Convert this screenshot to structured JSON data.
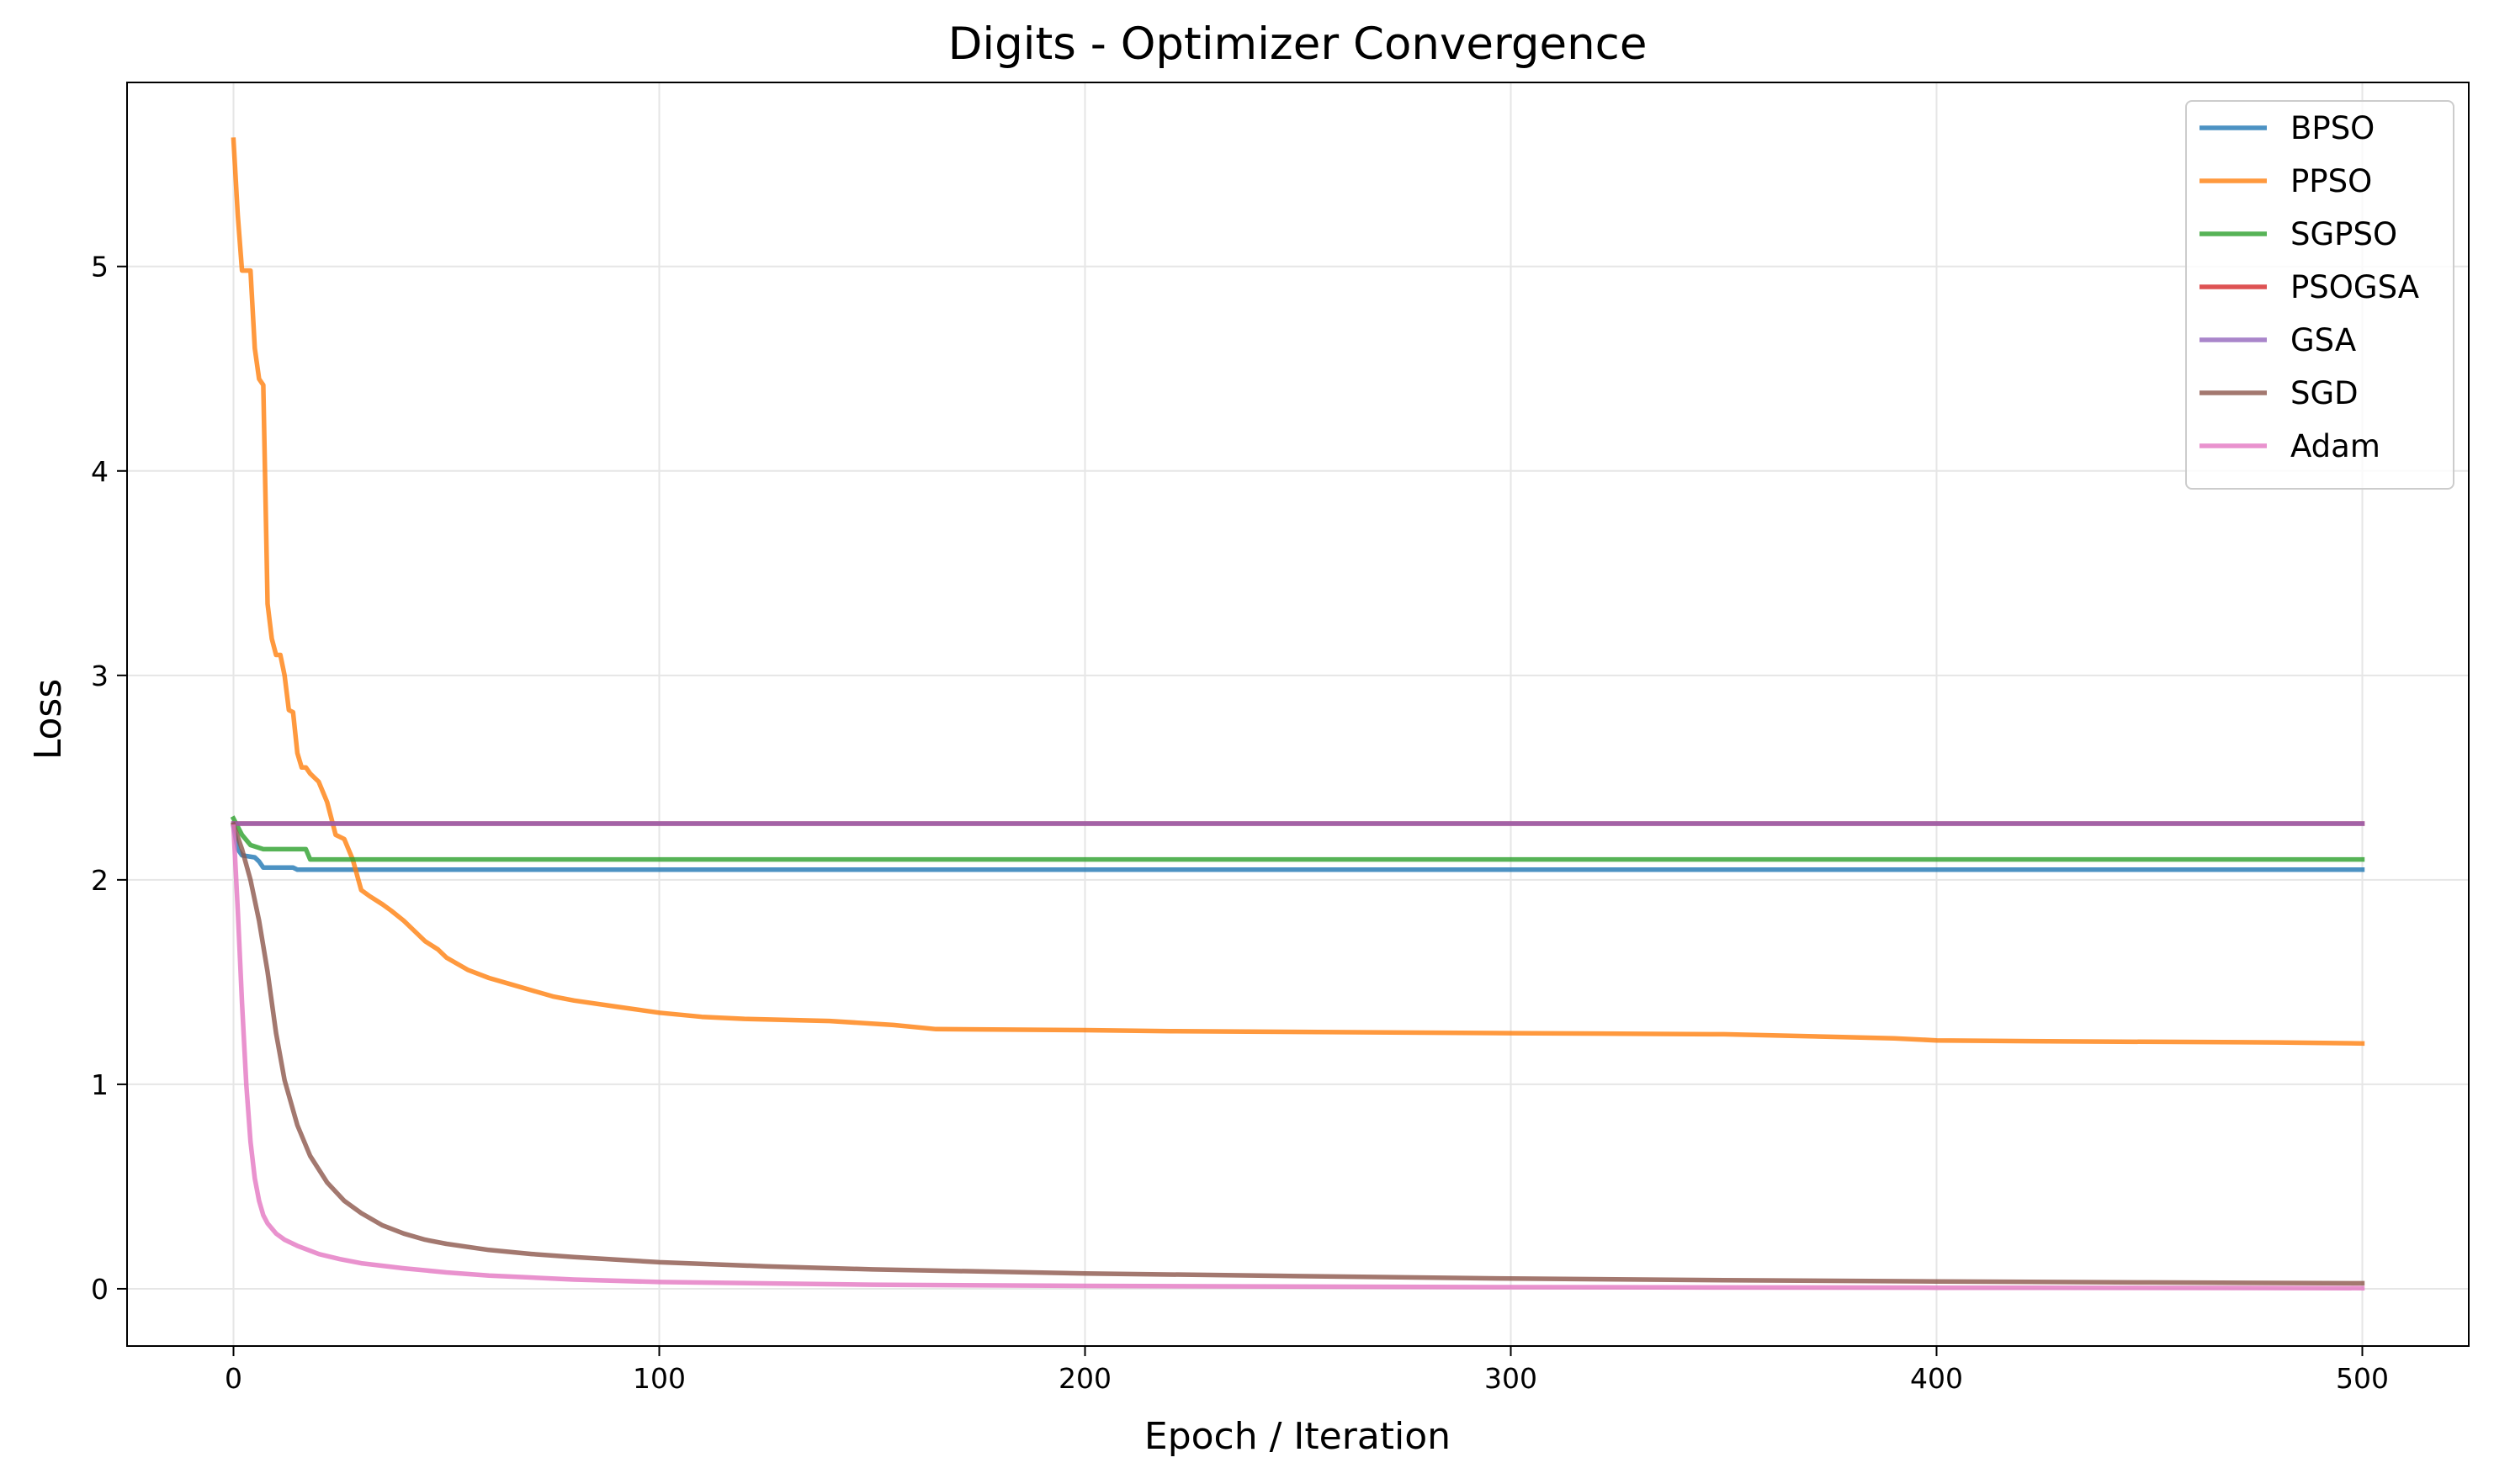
{
  "chart_data": {
    "type": "line",
    "title": "Digits - Optimizer Convergence",
    "xlabel": "Epoch / Iteration",
    "ylabel": "Loss",
    "xlim": [
      -25,
      525
    ],
    "ylim": [
      -0.28,
      5.9
    ],
    "xticks": [
      0,
      100,
      200,
      300,
      400,
      500
    ],
    "yticks": [
      0,
      1,
      2,
      3,
      4,
      5
    ],
    "grid": true,
    "legend_position": "top-right",
    "series": [
      {
        "name": "BPSO",
        "color": "#1f77b4",
        "points": [
          [
            0,
            2.26
          ],
          [
            1,
            2.15
          ],
          [
            2,
            2.12
          ],
          [
            5,
            2.11
          ],
          [
            6,
            2.09
          ],
          [
            7,
            2.06
          ],
          [
            14,
            2.06
          ],
          [
            15,
            2.05
          ],
          [
            500,
            2.05
          ]
        ]
      },
      {
        "name": "PPSO",
        "color": "#ff7f0e",
        "points": [
          [
            0,
            5.62
          ],
          [
            1,
            5.25
          ],
          [
            2,
            4.98
          ],
          [
            4,
            4.98
          ],
          [
            5,
            4.6
          ],
          [
            6,
            4.45
          ],
          [
            7,
            4.42
          ],
          [
            8,
            3.35
          ],
          [
            9,
            3.18
          ],
          [
            10,
            3.1
          ],
          [
            11,
            3.1
          ],
          [
            12,
            3.0
          ],
          [
            13,
            2.83
          ],
          [
            14,
            2.82
          ],
          [
            15,
            2.62
          ],
          [
            16,
            2.55
          ],
          [
            17,
            2.55
          ],
          [
            18,
            2.52
          ],
          [
            19,
            2.5
          ],
          [
            20,
            2.48
          ],
          [
            21,
            2.43
          ],
          [
            22,
            2.38
          ],
          [
            23,
            2.3
          ],
          [
            24,
            2.22
          ],
          [
            26,
            2.2
          ],
          [
            28,
            2.1
          ],
          [
            30,
            1.95
          ],
          [
            32,
            1.92
          ],
          [
            35,
            1.88
          ],
          [
            37,
            1.85
          ],
          [
            40,
            1.8
          ],
          [
            42,
            1.76
          ],
          [
            45,
            1.7
          ],
          [
            48,
            1.66
          ],
          [
            50,
            1.62
          ],
          [
            55,
            1.56
          ],
          [
            60,
            1.52
          ],
          [
            65,
            1.49
          ],
          [
            70,
            1.46
          ],
          [
            75,
            1.43
          ],
          [
            80,
            1.41
          ],
          [
            90,
            1.38
          ],
          [
            100,
            1.35
          ],
          [
            110,
            1.33
          ],
          [
            120,
            1.32
          ],
          [
            140,
            1.31
          ],
          [
            155,
            1.29
          ],
          [
            165,
            1.27
          ],
          [
            200,
            1.265
          ],
          [
            220,
            1.26
          ],
          [
            300,
            1.25
          ],
          [
            350,
            1.245
          ],
          [
            380,
            1.23
          ],
          [
            390,
            1.225
          ],
          [
            400,
            1.215
          ],
          [
            430,
            1.21
          ],
          [
            480,
            1.205
          ],
          [
            500,
            1.2
          ]
        ]
      },
      {
        "name": "SGPSO",
        "color": "#2ca02c",
        "points": [
          [
            0,
            2.3
          ],
          [
            2,
            2.22
          ],
          [
            4,
            2.17
          ],
          [
            7,
            2.15
          ],
          [
            10,
            2.15
          ],
          [
            17,
            2.15
          ],
          [
            18,
            2.1
          ],
          [
            500,
            2.1
          ]
        ]
      },
      {
        "name": "PSOGSA",
        "color": "#d62728",
        "points": [
          [
            0,
            2.275
          ],
          [
            500,
            2.275
          ]
        ]
      },
      {
        "name": "GSA",
        "color": "#9467bd",
        "points": [
          [
            0,
            2.275
          ],
          [
            500,
            2.275
          ]
        ]
      },
      {
        "name": "SGD",
        "color": "#8c564b",
        "points": [
          [
            0,
            2.27
          ],
          [
            2,
            2.15
          ],
          [
            4,
            2.0
          ],
          [
            6,
            1.8
          ],
          [
            8,
            1.55
          ],
          [
            10,
            1.25
          ],
          [
            12,
            1.02
          ],
          [
            15,
            0.8
          ],
          [
            18,
            0.65
          ],
          [
            22,
            0.52
          ],
          [
            26,
            0.43
          ],
          [
            30,
            0.37
          ],
          [
            35,
            0.31
          ],
          [
            40,
            0.27
          ],
          [
            45,
            0.24
          ],
          [
            50,
            0.22
          ],
          [
            60,
            0.19
          ],
          [
            70,
            0.17
          ],
          [
            80,
            0.155
          ],
          [
            100,
            0.13
          ],
          [
            125,
            0.11
          ],
          [
            150,
            0.095
          ],
          [
            200,
            0.075
          ],
          [
            250,
            0.062
          ],
          [
            300,
            0.05
          ],
          [
            350,
            0.042
          ],
          [
            400,
            0.036
          ],
          [
            450,
            0.031
          ],
          [
            500,
            0.027
          ]
        ]
      },
      {
        "name": "Adam",
        "color": "#e377c2",
        "points": [
          [
            0,
            2.26
          ],
          [
            1,
            1.85
          ],
          [
            2,
            1.4
          ],
          [
            3,
            1.0
          ],
          [
            4,
            0.72
          ],
          [
            5,
            0.54
          ],
          [
            6,
            0.43
          ],
          [
            7,
            0.36
          ],
          [
            8,
            0.32
          ],
          [
            10,
            0.27
          ],
          [
            12,
            0.24
          ],
          [
            15,
            0.21
          ],
          [
            20,
            0.17
          ],
          [
            25,
            0.145
          ],
          [
            30,
            0.125
          ],
          [
            40,
            0.1
          ],
          [
            50,
            0.08
          ],
          [
            60,
            0.065
          ],
          [
            80,
            0.045
          ],
          [
            100,
            0.033
          ],
          [
            150,
            0.02
          ],
          [
            200,
            0.014
          ],
          [
            300,
            0.008
          ],
          [
            400,
            0.005
          ],
          [
            500,
            0.003
          ]
        ]
      }
    ]
  }
}
